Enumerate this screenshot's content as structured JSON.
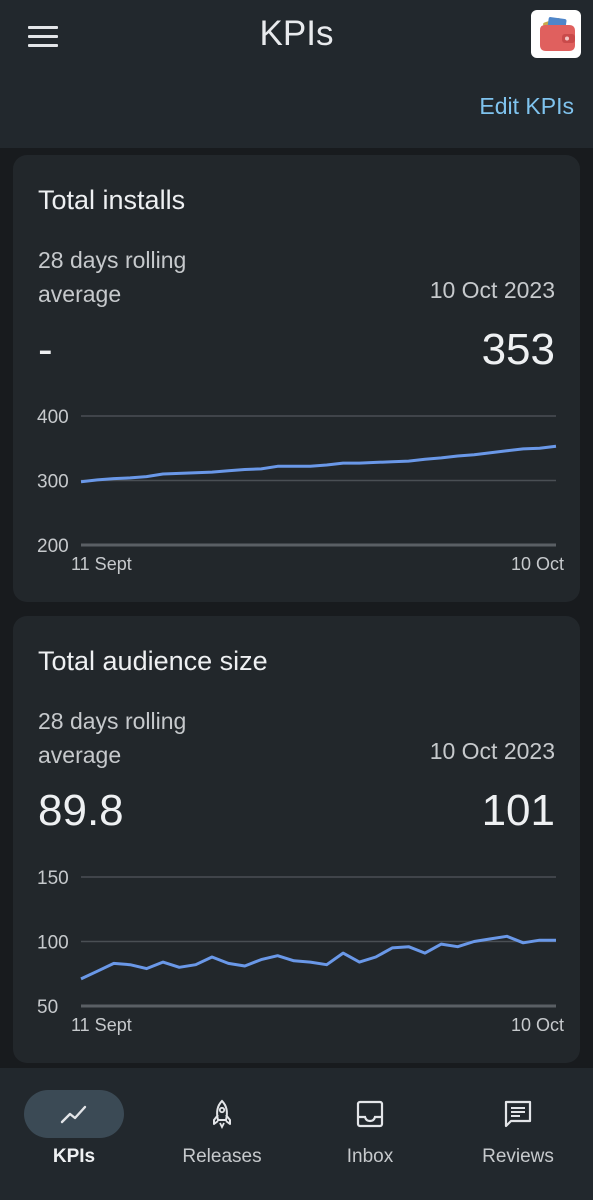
{
  "header": {
    "title": "KPIs",
    "edit_label": "Edit KPIs"
  },
  "cards": [
    {
      "title": "Total installs",
      "avg_label": "28 days rolling average",
      "avg_value": "-",
      "date": "10 Oct 2023",
      "value": "353",
      "chart_data": {
        "type": "line",
        "x_start_label": "11 Sept",
        "x_end_label": "10 Oct",
        "ylim": [
          200,
          400
        ],
        "yticks": [
          400,
          300,
          200
        ],
        "color": "#6a98e8",
        "values": [
          298,
          301,
          303,
          304,
          306,
          310,
          311,
          312,
          313,
          315,
          317,
          318,
          322,
          322,
          322,
          324,
          327,
          327,
          328,
          329,
          330,
          333,
          335,
          338,
          340,
          343,
          346,
          349,
          350,
          353
        ]
      }
    },
    {
      "title": "Total audience size",
      "avg_label": "28 days rolling average",
      "avg_value": "89.8",
      "date": "10 Oct 2023",
      "value": "101",
      "chart_data": {
        "type": "line",
        "x_start_label": "11 Sept",
        "x_end_label": "10 Oct",
        "ylim": [
          50,
          150
        ],
        "yticks": [
          150,
          100,
          50
        ],
        "color": "#6a98e8",
        "values": [
          71,
          77,
          83,
          82,
          79,
          84,
          80,
          82,
          88,
          83,
          81,
          86,
          89,
          85,
          84,
          82,
          91,
          84,
          88,
          95,
          96,
          91,
          98,
          96,
          100,
          102,
          104,
          99,
          101,
          101
        ]
      }
    }
  ],
  "nav": [
    {
      "label": "KPIs",
      "icon": "trending-up-icon",
      "active": true
    },
    {
      "label": "Releases",
      "icon": "rocket-icon",
      "active": false
    },
    {
      "label": "Inbox",
      "icon": "inbox-icon",
      "active": false
    },
    {
      "label": "Reviews",
      "icon": "reviews-icon",
      "active": false
    }
  ]
}
